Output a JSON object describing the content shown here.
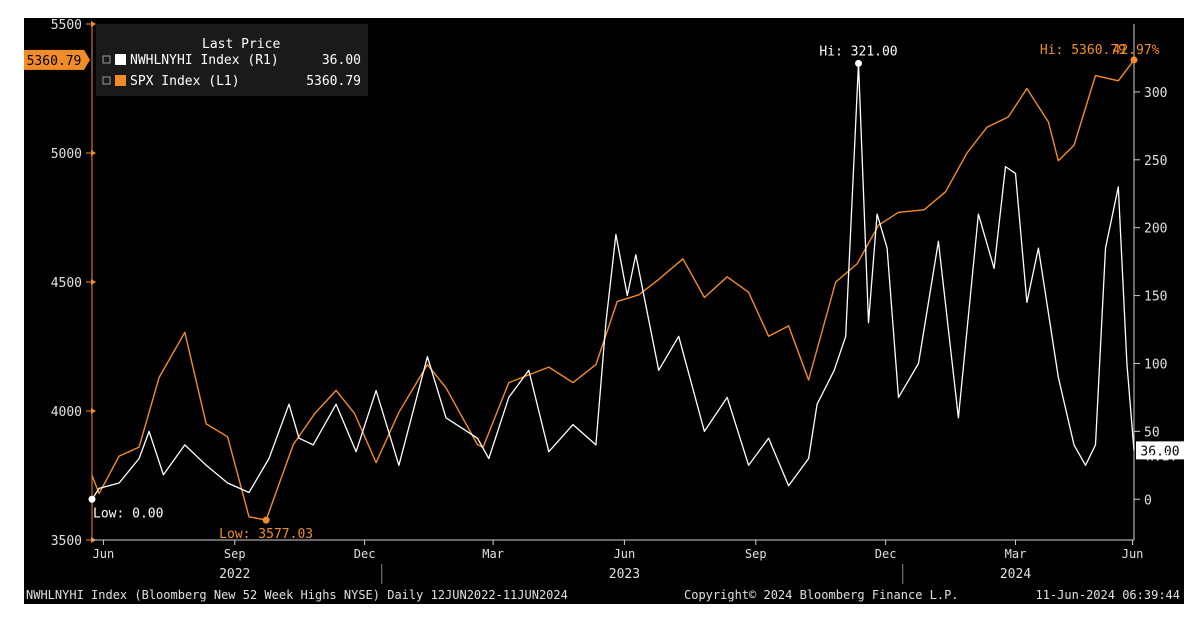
{
  "chart_data": {
    "type": "line",
    "legend": {
      "header": "Last Price",
      "entries": [
        {
          "name": "NWHLNYHI Index (R1)",
          "value": "36.00",
          "color": "#ffffff"
        },
        {
          "name": "SPX Index (L1)",
          "value": "5360.79",
          "color": "#f28c28"
        }
      ]
    },
    "left_axis": {
      "min": 3500,
      "max": 5500,
      "ticks": [
        "5500",
        "5000",
        "4500",
        "4000",
        "3500"
      ],
      "color": "#f28c28"
    },
    "right_axis": {
      "min": -30,
      "max": 350,
      "ticks": [
        "300",
        "250",
        "200",
        "150",
        "100",
        "50",
        "0"
      ]
    },
    "x_axis": {
      "start": "2022-06-12",
      "end": "2024-06-11",
      "month_ticks": [
        {
          "label": "Jun",
          "date": "2022-06-20"
        },
        {
          "label": "Sep",
          "date": "2022-09-20"
        },
        {
          "label": "Dec",
          "date": "2022-12-20"
        },
        {
          "label": "Mar",
          "date": "2023-03-20"
        },
        {
          "label": "Jun",
          "date": "2023-06-20"
        },
        {
          "label": "Sep",
          "date": "2023-09-20"
        },
        {
          "label": "Dec",
          "date": "2023-12-20"
        },
        {
          "label": "Mar",
          "date": "2024-03-20"
        },
        {
          "label": "Jun",
          "date": "2024-06-10"
        }
      ],
      "years": [
        {
          "label": "2022",
          "date": "2022-09-20"
        },
        {
          "label": "2023",
          "date": "2023-06-20"
        },
        {
          "label": "2024",
          "date": "2024-03-20"
        }
      ],
      "year_separators": [
        "2023-01-01",
        "2024-01-01"
      ]
    },
    "spx_series": {
      "name": "SPX Index",
      "axis": "left",
      "dates": [
        "2022-06-12",
        "2022-06-17",
        "2022-07-01",
        "2022-07-15",
        "2022-07-29",
        "2022-08-16",
        "2022-08-31",
        "2022-09-15",
        "2022-09-30",
        "2022-10-12",
        "2022-10-31",
        "2022-11-15",
        "2022-11-30",
        "2022-12-13",
        "2022-12-28",
        "2023-01-13",
        "2023-02-02",
        "2023-02-15",
        "2023-03-09",
        "2023-03-13",
        "2023-03-31",
        "2023-04-14",
        "2023-04-28",
        "2023-05-15",
        "2023-05-31",
        "2023-06-15",
        "2023-06-30",
        "2023-07-14",
        "2023-07-31",
        "2023-08-15",
        "2023-08-31",
        "2023-09-15",
        "2023-09-29",
        "2023-10-13",
        "2023-10-27",
        "2023-11-15",
        "2023-11-30",
        "2023-12-15",
        "2023-12-29",
        "2024-01-16",
        "2024-01-31",
        "2024-02-15",
        "2024-02-29",
        "2024-03-15",
        "2024-03-28",
        "2024-04-12",
        "2024-04-19",
        "2024-04-30",
        "2024-05-15",
        "2024-05-31",
        "2024-06-11"
      ],
      "values": [
        3750,
        3680,
        3825,
        3860,
        4130,
        4305,
        3950,
        3900,
        3590,
        3577,
        3870,
        3990,
        4080,
        3990,
        3800,
        3995,
        4180,
        4090,
        3870,
        3860,
        4110,
        4140,
        4170,
        4110,
        4180,
        4425,
        4450,
        4510,
        4590,
        4440,
        4520,
        4460,
        4290,
        4330,
        4120,
        4500,
        4570,
        4720,
        4770,
        4780,
        4850,
        5000,
        5100,
        5140,
        5250,
        5120,
        4970,
        5030,
        5300,
        5280,
        5360.79
      ],
      "high": {
        "label": "Hi: 5360.79",
        "value": 5360.79
      },
      "low": {
        "label": "Low: 3577.03",
        "value": 3577.03,
        "date": "2022-10-12"
      },
      "change_label": "42.97%",
      "last_label": "5360.79"
    },
    "nwhl_series": {
      "name": "NWHLNYHI Index",
      "axis": "right",
      "dates": [
        "2022-06-12",
        "2022-06-17",
        "2022-07-01",
        "2022-07-15",
        "2022-07-22",
        "2022-08-01",
        "2022-08-16",
        "2022-08-31",
        "2022-09-15",
        "2022-09-30",
        "2022-10-14",
        "2022-10-28",
        "2022-11-04",
        "2022-11-14",
        "2022-11-30",
        "2022-12-14",
        "2022-12-28",
        "2023-01-13",
        "2023-02-02",
        "2023-02-15",
        "2023-03-09",
        "2023-03-17",
        "2023-03-31",
        "2023-04-14",
        "2023-04-28",
        "2023-05-15",
        "2023-05-31",
        "2023-06-07",
        "2023-06-14",
        "2023-06-22",
        "2023-06-28",
        "2023-07-14",
        "2023-07-28",
        "2023-08-15",
        "2023-08-31",
        "2023-09-15",
        "2023-09-29",
        "2023-10-13",
        "2023-10-27",
        "2023-11-02",
        "2023-11-14",
        "2023-11-22",
        "2023-12-01",
        "2023-12-08",
        "2023-12-14",
        "2023-12-21",
        "2023-12-29",
        "2024-01-12",
        "2024-01-26",
        "2024-02-09",
        "2024-02-23",
        "2024-03-05",
        "2024-03-13",
        "2024-03-20",
        "2024-03-28",
        "2024-04-05",
        "2024-04-19",
        "2024-04-30",
        "2024-05-08",
        "2024-05-15",
        "2024-05-22",
        "2024-05-31",
        "2024-06-06",
        "2024-06-11"
      ],
      "values": [
        0,
        8,
        12,
        30,
        50,
        18,
        40,
        25,
        12,
        5,
        30,
        70,
        45,
        40,
        70,
        35,
        80,
        25,
        105,
        60,
        45,
        30,
        75,
        95,
        35,
        55,
        40,
        130,
        195,
        150,
        180,
        95,
        120,
        50,
        75,
        25,
        45,
        10,
        30,
        70,
        95,
        120,
        321,
        130,
        210,
        185,
        75,
        100,
        190,
        60,
        210,
        170,
        245,
        240,
        145,
        185,
        90,
        40,
        25,
        40,
        185,
        230,
        100,
        36
      ],
      "high": {
        "label": "Hi: 321.00",
        "value": 321,
        "date": "2023-12-01"
      },
      "low": {
        "label": "Low: 0.00",
        "value": 0,
        "date": "2022-06-12"
      },
      "last_label": "36.00",
      "na_label": "n.a."
    },
    "footer": {
      "left": "NWHLNYHI Index (Bloomberg New 52 Week Highs NYSE)  Daily 12JUN2022-11JUN2024",
      "center": "Copyright© 2024 Bloomberg Finance L.P.",
      "right": "11-Jun-2024 06:39:44"
    }
  }
}
